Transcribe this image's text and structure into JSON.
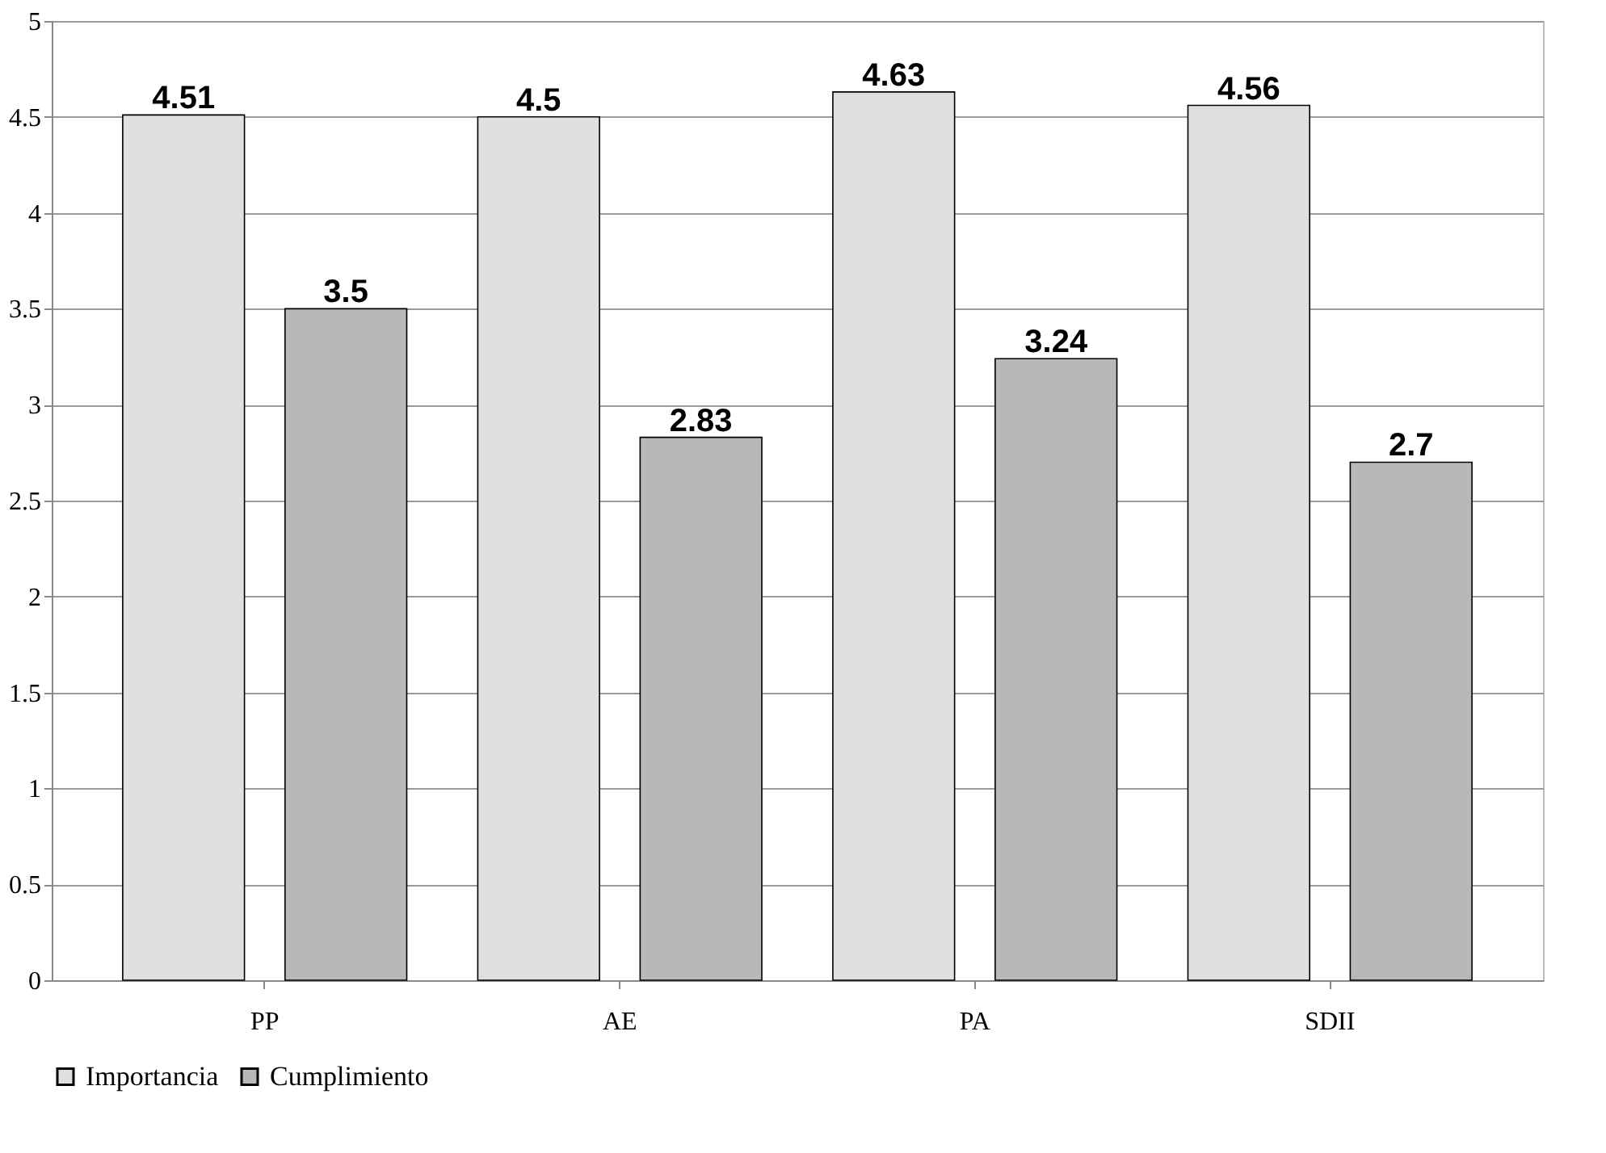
{
  "chart_data": {
    "type": "bar",
    "categories": [
      "PP",
      "AE",
      "PA",
      "SDII"
    ],
    "series": [
      {
        "name": "Importancia",
        "color": "#e0e0e0",
        "values": [
          4.51,
          4.5,
          4.63,
          4.56
        ]
      },
      {
        "name": "Cumplimiento",
        "color": "#b8b8b8",
        "values": [
          3.5,
          2.83,
          3.24,
          2.7
        ]
      }
    ],
    "ylim": [
      0,
      5
    ],
    "yticks": [
      0,
      0.5,
      1,
      1.5,
      2,
      2.5,
      3,
      3.5,
      4,
      4.5,
      5
    ],
    "grid": "y",
    "legend": "bottom",
    "data_labels": true
  }
}
